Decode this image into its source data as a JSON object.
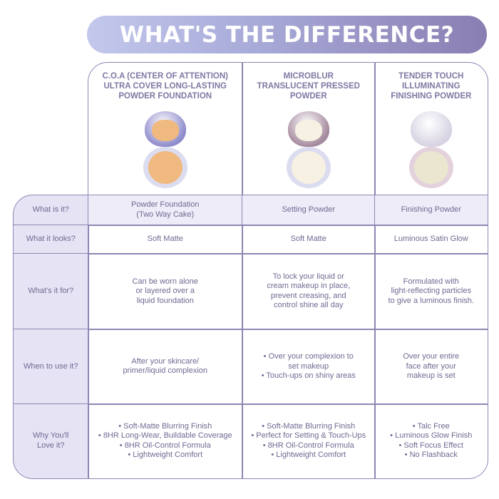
{
  "title": "WHAT'S THE DIFFERENCE?",
  "products": [
    {
      "name": "C.O.A (CENTER OF ATTENTION) ULTRA COVER LONG-LASTING POWDER FOUNDATION",
      "case_color": "#8f8ccc",
      "powder_color": "#f0b97f"
    },
    {
      "name": "MICROBLUR TRANSLUCENT PRESSED POWDER",
      "case_color": "#a58a9e",
      "powder_color": "#f6f1e2"
    },
    {
      "name": "TENDER TOUCH ILLUMINATING FINISHING POWDER",
      "case_color": "#d7d3e3",
      "powder_color": "#ebe6cf"
    }
  ],
  "rows": [
    {
      "label": "What is it?",
      "values": [
        "Powder Foundation\n(Two Way Cake)",
        "Setting Powder",
        "Finishing Powder"
      ]
    },
    {
      "label": "What it looks?",
      "values": [
        "Soft Matte",
        "Soft Matte",
        "Luminous Satin Glow"
      ]
    },
    {
      "label": "What's it for?",
      "values": [
        "Can be worn alone\nor layered over a\nliquid foundation",
        "To lock your liquid or\ncream makeup in place,\nprevent creasing, and\ncontrol shine all day",
        "Formulated with\nlight-reflecting particles\nto give a luminous finish."
      ]
    },
    {
      "label": "When to use it?",
      "values": [
        "After your skincare/\nprimer/liquid complexion",
        null,
        "Over your entire\nface after your\nmakeup is set"
      ],
      "bullets2": [
        "Over your complexion to\nset makeup",
        "Touch-ups on shiny areas"
      ]
    },
    {
      "label": "Why You'll\nLove it?",
      "lists": [
        [
          "Soft-Matte Blurring Finish",
          "8HR Long-Wear, Buildable Coverage",
          "8HR Oil-Control Formula",
          "Lightweight Comfort"
        ],
        [
          "Soft-Matte Blurring Finish",
          "Perfect for Setting & Touch-Ups",
          "8HR Oil-Control Formula",
          "Lightweight Comfort"
        ],
        [
          "Talc Free",
          "Luminous Glow Finish",
          "Soft Focus Effect",
          "No Flashback"
        ]
      ]
    }
  ]
}
